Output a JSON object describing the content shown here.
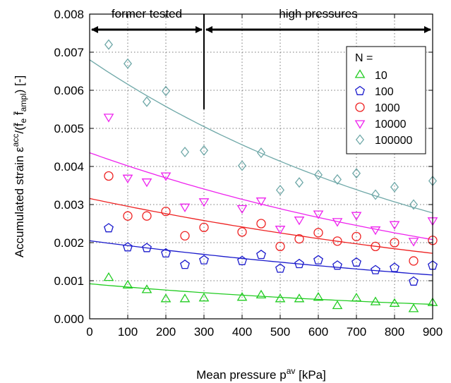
{
  "chart_data": {
    "type": "scatter",
    "xlabel": "Mean pressure",
    "xlabel_symbol": "p",
    "xlabel_sup": "av",
    "xlabel_unit": "[kPa]",
    "ylabel": "Accumulated strain",
    "ylabel_symbol": "ε",
    "ylabel_sup": "acc",
    "ylabel_divisor": "/(f̄",
    "ylabel_sub1": "e",
    "ylabel_mid": " f̄",
    "ylabel_sub2": "ampl",
    "ylabel_unit": ") [-]",
    "xlim": [
      0,
      900
    ],
    "ylim": [
      0,
      0.008
    ],
    "xticks": [
      "0",
      "100",
      "200",
      "300",
      "400",
      "500",
      "600",
      "700",
      "800",
      "900"
    ],
    "yticks": [
      "0.000",
      "0.001",
      "0.002",
      "0.003",
      "0.004",
      "0.005",
      "0.006",
      "0.007",
      "0.008"
    ],
    "grid": true,
    "legend_title": "N =",
    "legend_position": "top-right",
    "regions": [
      {
        "label": "former tested",
        "x_from": 0,
        "x_to": 300
      },
      {
        "label": "high pressures",
        "x_from": 300,
        "x_to": 900
      }
    ],
    "series": [
      {
        "name": "10",
        "marker": "triangle-up",
        "color": "#22cc22",
        "x": [
          50,
          100,
          150,
          200,
          250,
          300,
          400,
          450,
          500,
          550,
          600,
          650,
          700,
          750,
          800,
          850,
          900
        ],
        "y": [
          0.00108,
          0.00088,
          0.00076,
          0.00052,
          0.00052,
          0.00054,
          0.00056,
          0.00062,
          0.00052,
          0.00052,
          0.00056,
          0.00034,
          0.00054,
          0.00044,
          0.0004,
          0.00026,
          0.00042
        ],
        "fit": [
          0.00092,
          0.00038
        ]
      },
      {
        "name": "100",
        "marker": "pentagon",
        "color": "#1a1acc",
        "x": [
          50,
          100,
          150,
          200,
          250,
          300,
          400,
          450,
          500,
          550,
          600,
          650,
          700,
          750,
          800,
          850,
          900
        ],
        "y": [
          0.00238,
          0.00188,
          0.00186,
          0.00172,
          0.00142,
          0.00154,
          0.00152,
          0.00168,
          0.00132,
          0.00144,
          0.00154,
          0.0014,
          0.00148,
          0.00128,
          0.00134,
          0.00098,
          0.0014
        ],
        "fit": [
          0.00205,
          0.00115
        ]
      },
      {
        "name": "1000",
        "marker": "circle",
        "color": "#ee2222",
        "x": [
          50,
          100,
          150,
          200,
          250,
          300,
          400,
          450,
          500,
          550,
          600,
          650,
          700,
          750,
          800,
          850,
          900
        ],
        "y": [
          0.00375,
          0.0027,
          0.0027,
          0.00282,
          0.00218,
          0.0024,
          0.00228,
          0.0025,
          0.0019,
          0.0021,
          0.00226,
          0.00204,
          0.00216,
          0.0019,
          0.002,
          0.00152,
          0.00206
        ],
        "fit": [
          0.00316,
          0.00172
        ]
      },
      {
        "name": "10000",
        "marker": "triangle-down",
        "color": "#ee22ee",
        "x": [
          50,
          100,
          150,
          200,
          250,
          300,
          400,
          450,
          500,
          550,
          600,
          650,
          700,
          750,
          800,
          850,
          900
        ],
        "y": [
          0.0053,
          0.0037,
          0.0036,
          0.00376,
          0.00294,
          0.00308,
          0.0029,
          0.0031,
          0.00236,
          0.0026,
          0.00276,
          0.00256,
          0.00272,
          0.00234,
          0.00248,
          0.00204,
          0.00258
        ],
        "fit": [
          0.00436,
          0.00208
        ]
      },
      {
        "name": "100000",
        "marker": "diamond",
        "color": "#6fa8a8",
        "x": [
          50,
          100,
          150,
          200,
          250,
          300,
          400,
          450,
          500,
          550,
          600,
          650,
          700,
          750,
          800,
          850,
          900
        ],
        "y": [
          0.0072,
          0.0067,
          0.0057,
          0.00598,
          0.00438,
          0.00442,
          0.00402,
          0.00436,
          0.00338,
          0.00358,
          0.00378,
          0.00366,
          0.00382,
          0.00326,
          0.00346,
          0.003,
          0.00362
        ],
        "fit": [
          0.0068,
          0.00278
        ]
      }
    ]
  }
}
